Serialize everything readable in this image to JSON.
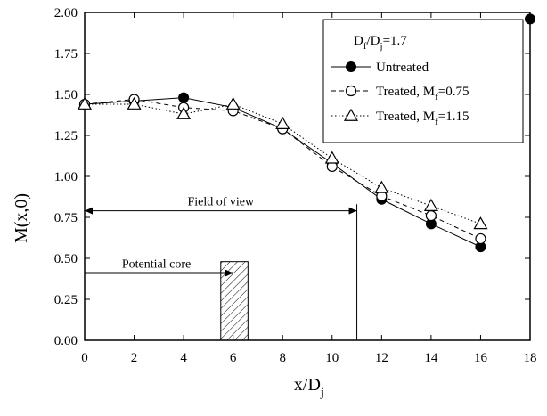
{
  "chart_data": {
    "type": "line",
    "xlabel": "x/D",
    "xlabel_sub": "j",
    "ylabel": "M(x,0)",
    "xlim": [
      0,
      18
    ],
    "ylim": [
      0,
      2.0
    ],
    "xticks": [
      "0",
      "2",
      "4",
      "6",
      "8",
      "10",
      "12",
      "14",
      "16",
      "18"
    ],
    "yticks": [
      "0.00",
      "0.25",
      "0.50",
      "0.75",
      "1.00",
      "1.25",
      "1.50",
      "1.75",
      "2.00"
    ],
    "grid": false,
    "legend": {
      "placement": "top-right",
      "title": {
        "a": "D",
        "a_sub": "f",
        "b": "/D",
        "b_sub": "j",
        "c": "=1.7"
      }
    },
    "series": [
      {
        "name": "Untreated",
        "marker": "filled-circle",
        "line": "solid",
        "x": [
          0,
          2,
          4,
          6,
          8,
          10,
          12,
          14,
          16
        ],
        "y": [
          1.44,
          1.46,
          1.48,
          1.42,
          1.29,
          1.08,
          0.86,
          0.71,
          0.57
        ]
      },
      {
        "name": "Treated, M",
        "name_sub": "f",
        "name_tail": "=0.75",
        "marker": "open-circle",
        "line": "dashed",
        "x": [
          0,
          2,
          4,
          6,
          8,
          10,
          12,
          14,
          16
        ],
        "y": [
          1.44,
          1.47,
          1.42,
          1.4,
          1.29,
          1.06,
          0.88,
          0.76,
          0.62
        ]
      },
      {
        "name": "Treated, M",
        "name_sub": "f",
        "name_tail": "=1.15",
        "marker": "open-triangle",
        "line": "dotted",
        "x": [
          0,
          2,
          4,
          6,
          8,
          10,
          12,
          14,
          16
        ],
        "y": [
          1.44,
          1.44,
          1.38,
          1.44,
          1.32,
          1.11,
          0.93,
          0.82,
          0.71
        ]
      }
    ],
    "annotations": {
      "field_of_view": {
        "label": "Field of view",
        "x_start": 0,
        "x_end": 11,
        "y": 0.79
      },
      "potential_core": {
        "label": "Potential core",
        "x_start": 0,
        "x_end": 6.0,
        "y": 0.41
      },
      "core_bar": {
        "x_start": 5.5,
        "x_end": 6.6,
        "y_top": 0.48
      }
    },
    "edge_marker": {
      "x": 18,
      "y": 1.96
    }
  }
}
